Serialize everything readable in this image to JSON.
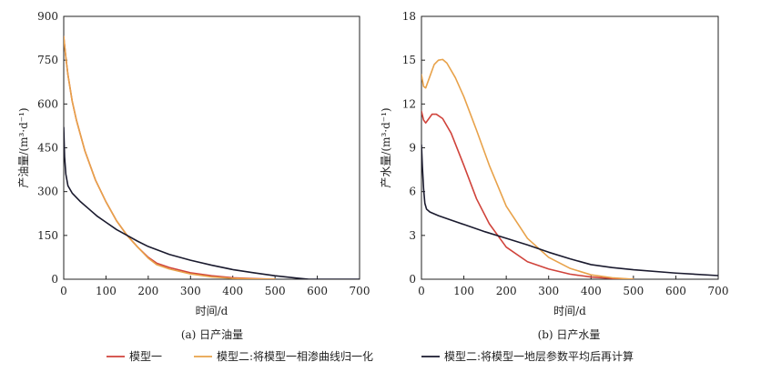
{
  "legend": [
    {
      "label": "模型一",
      "color": "#d0433b"
    },
    {
      "label": "模型二:将模型一相渗曲线归一化",
      "color": "#e8a24a"
    },
    {
      "label": "模型二:将模型一地层参数平均后再计算",
      "color": "#1a1a2e"
    }
  ],
  "chart_data": [
    {
      "type": "line",
      "title": "",
      "caption": "(a) 日产油量",
      "xlabel": "时间/d",
      "ylabel": "产油量/(m³·d⁻¹)",
      "xlim": [
        0,
        700
      ],
      "ylim": [
        0,
        900
      ],
      "xticks": [
        0,
        100,
        200,
        300,
        400,
        500,
        600,
        700
      ],
      "yticks": [
        0,
        150,
        300,
        450,
        600,
        750,
        900
      ],
      "series": [
        {
          "name": "模型一",
          "color": "#d0433b",
          "x": [
            0,
            5,
            10,
            20,
            30,
            50,
            75,
            100,
            125,
            150,
            175,
            200,
            220,
            250,
            300,
            350,
            400,
            450,
            500
          ],
          "y": [
            830,
            760,
            700,
            610,
            545,
            440,
            340,
            265,
            200,
            150,
            110,
            75,
            55,
            40,
            22,
            12,
            5,
            2,
            0
          ]
        },
        {
          "name": "模型二:将模型一相渗曲线归一化",
          "color": "#e8a24a",
          "x": [
            0,
            5,
            10,
            20,
            30,
            50,
            75,
            100,
            125,
            150,
            175,
            200,
            220,
            250,
            300,
            350,
            400,
            450,
            500
          ],
          "y": [
            830,
            760,
            700,
            610,
            545,
            440,
            340,
            265,
            200,
            150,
            110,
            72,
            50,
            35,
            18,
            8,
            3,
            1,
            0
          ]
        },
        {
          "name": "模型二:将模型一地层参数平均后再计算",
          "color": "#1a1a2e",
          "x": [
            0,
            2,
            5,
            10,
            20,
            40,
            60,
            80,
            100,
            125,
            150,
            175,
            200,
            250,
            300,
            350,
            400,
            450,
            500,
            550,
            580,
            600,
            650,
            700
          ],
          "y": [
            520,
            420,
            360,
            320,
            295,
            265,
            240,
            215,
            195,
            170,
            150,
            130,
            112,
            85,
            65,
            48,
            33,
            22,
            12,
            4,
            0,
            0,
            0,
            0
          ]
        }
      ]
    },
    {
      "type": "line",
      "title": "",
      "caption": "(b) 日产水量",
      "xlabel": "时间/d",
      "ylabel": "产水量/(m³·d⁻¹)",
      "xlim": [
        0,
        700
      ],
      "ylim": [
        0,
        18
      ],
      "xticks": [
        0,
        100,
        200,
        300,
        400,
        500,
        600,
        700
      ],
      "yticks": [
        0,
        3,
        6,
        9,
        12,
        15,
        18
      ],
      "series": [
        {
          "name": "模型一",
          "color": "#d0433b",
          "x": [
            0,
            5,
            10,
            15,
            25,
            35,
            50,
            70,
            100,
            130,
            160,
            200,
            250,
            300,
            350,
            400,
            450,
            500
          ],
          "y": [
            11.5,
            10.9,
            10.7,
            10.9,
            11.3,
            11.3,
            11.0,
            10.0,
            7.8,
            5.5,
            3.8,
            2.2,
            1.2,
            0.7,
            0.35,
            0.15,
            0.05,
            0
          ]
        },
        {
          "name": "模型二:将模型一相渗曲线归一化",
          "color": "#e8a24a",
          "x": [
            0,
            5,
            10,
            20,
            30,
            40,
            50,
            60,
            80,
            100,
            130,
            160,
            200,
            250,
            300,
            350,
            400,
            450,
            500
          ],
          "y": [
            14.0,
            13.2,
            13.1,
            13.9,
            14.7,
            15.0,
            15.05,
            14.8,
            13.8,
            12.5,
            10.2,
            7.8,
            5.0,
            2.8,
            1.5,
            0.75,
            0.3,
            0.1,
            0
          ]
        },
        {
          "name": "模型二:将模型一地层参数平均后再计算",
          "color": "#1a1a2e",
          "x": [
            0,
            2,
            5,
            8,
            12,
            20,
            40,
            70,
            100,
            150,
            200,
            250,
            300,
            350,
            400,
            450,
            500,
            600,
            700
          ],
          "y": [
            9.2,
            7.8,
            6.2,
            5.2,
            4.8,
            4.6,
            4.35,
            4.05,
            3.75,
            3.25,
            2.8,
            2.35,
            1.85,
            1.4,
            1.0,
            0.8,
            0.65,
            0.42,
            0.25
          ]
        }
      ]
    }
  ]
}
